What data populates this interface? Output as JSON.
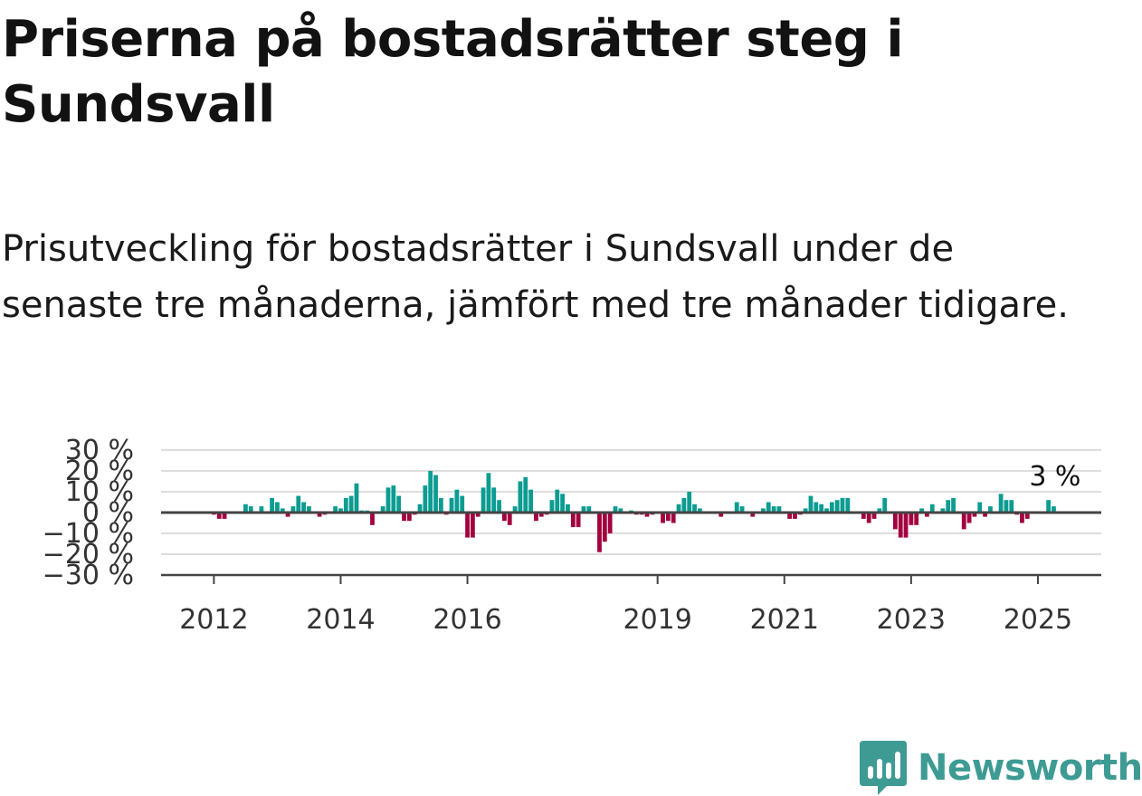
{
  "title": "Priserna på bostadsrätter steg i Sundsvall",
  "subtitle": "Prisutveckling för bostadsrätter i Sundsvall under de senaste tre månaderna, jämfört med tre månader tidigare.",
  "brand": {
    "name": "Newsworthy",
    "logo_icon": "newsworthy-logo-icon",
    "color": "#3e9b94"
  },
  "colors": {
    "positive": "#0c9c91",
    "negative": "#a3003f",
    "grid": "#dddddd",
    "axis": "#444444"
  },
  "chart_data": {
    "type": "bar",
    "title": "Priserna på bostadsrätter steg i Sundsvall",
    "xlabel": "",
    "ylabel": "",
    "grid": true,
    "legend": "none",
    "yticks": [
      "30 %",
      "20 %",
      "10 %",
      "0 %",
      "−10 %",
      "−20 %",
      "−30 %"
    ],
    "ytick_values": [
      30,
      20,
      10,
      0,
      -10,
      -20,
      -30
    ],
    "ylim": [
      -30,
      30
    ],
    "xticks": [
      "2012",
      "2014",
      "2016",
      "2019",
      "2021",
      "2023",
      "2025"
    ],
    "xtick_values": [
      "2012-01",
      "2014-01",
      "2016-01",
      "2019-01",
      "2021-01",
      "2023-01",
      "2025-01"
    ],
    "xlim": [
      "2011-03",
      "2026-01"
    ],
    "last_value_label": "3 %",
    "series": [
      {
        "start": "2012-01",
        "frequency": "monthly",
        "values": [
          -1,
          -3,
          -3,
          0,
          0,
          0,
          4,
          3,
          0,
          3,
          0,
          7,
          5,
          2,
          -2,
          3,
          8,
          5,
          3,
          0,
          -2,
          -1,
          0,
          3,
          2,
          7,
          8,
          14,
          1,
          1,
          -6,
          0,
          3,
          12,
          13,
          8,
          -4,
          -4,
          -1,
          4,
          13,
          20,
          18,
          7,
          -1,
          7,
          11,
          8,
          -12,
          -12,
          -2,
          12,
          19,
          12,
          6,
          -4,
          -6,
          3,
          15,
          17,
          11,
          -4,
          -2,
          -1,
          6,
          11,
          9,
          4,
          -7,
          -7,
          3,
          3,
          0,
          -19,
          -14,
          -10,
          3,
          2,
          0,
          1,
          -1,
          -1,
          -2,
          -1,
          0,
          -5,
          -4,
          -5,
          4,
          7,
          10,
          4,
          2,
          0,
          0,
          0,
          -2,
          0,
          0,
          5,
          3,
          0,
          -2,
          0,
          2,
          5,
          3,
          3,
          0,
          -3,
          -3,
          -1,
          2,
          8,
          5,
          4,
          2,
          5,
          6,
          7,
          7,
          0,
          0,
          -3,
          -5,
          -3,
          2,
          7,
          0,
          -8,
          -12,
          -12,
          -6,
          -6,
          2,
          -2,
          4,
          0,
          2,
          6,
          7,
          0,
          -8,
          -5,
          -2,
          5,
          -2,
          3,
          0,
          9,
          6,
          6,
          -1,
          -5,
          -3,
          0,
          0,
          0,
          6,
          3
        ]
      }
    ]
  }
}
